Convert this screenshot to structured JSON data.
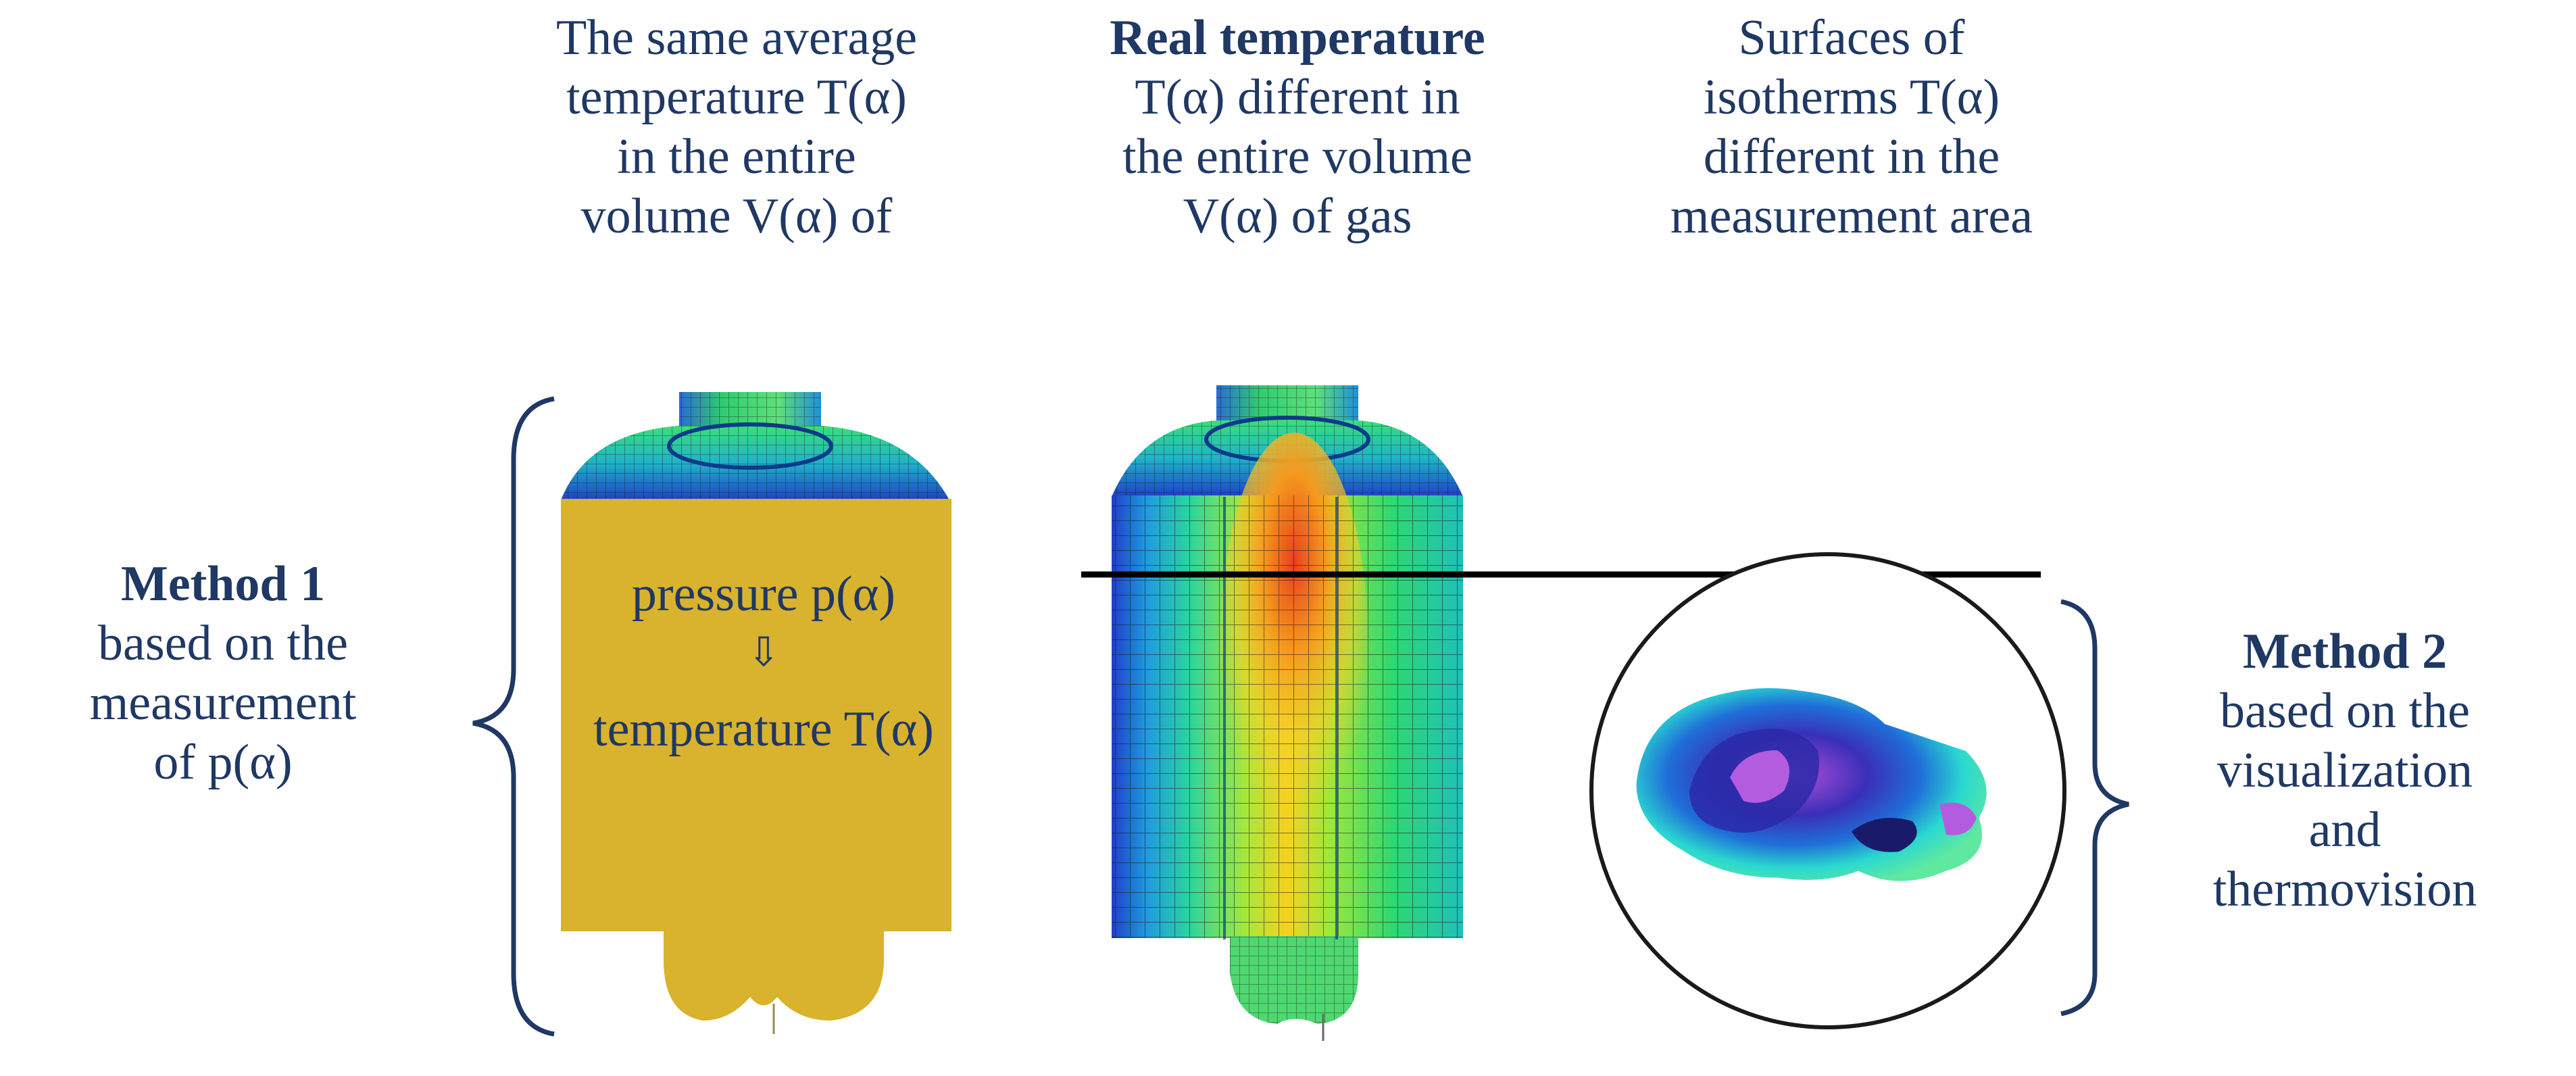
{
  "captions": {
    "col1": [
      "The same average",
      "temperature T(α)",
      "in the entire",
      "volume V(α) of"
    ],
    "col2_bold": "Real temperature",
    "col2": [
      "T(α) different in",
      "the entire volume",
      "V(α) of gas"
    ],
    "col3": [
      "Surfaces of",
      "isotherms T(α)",
      "different in the",
      "measurement area"
    ]
  },
  "method1": {
    "title": "Method 1",
    "lines": [
      "based on the",
      "measurement",
      "of p(α)"
    ]
  },
  "method2": {
    "title": "Method 2",
    "lines": [
      "based on the",
      "visualization",
      "and",
      "thermovision"
    ]
  },
  "left_model": {
    "pressure_label": "pressure p(α)",
    "arrow_symbol": "⇩",
    "temperature_label": "temperature T(α)"
  },
  "colors": {
    "text": "#1f3864",
    "gold_fill": "#d9b22e",
    "bracket": "#1f3864",
    "line": "#000000"
  }
}
